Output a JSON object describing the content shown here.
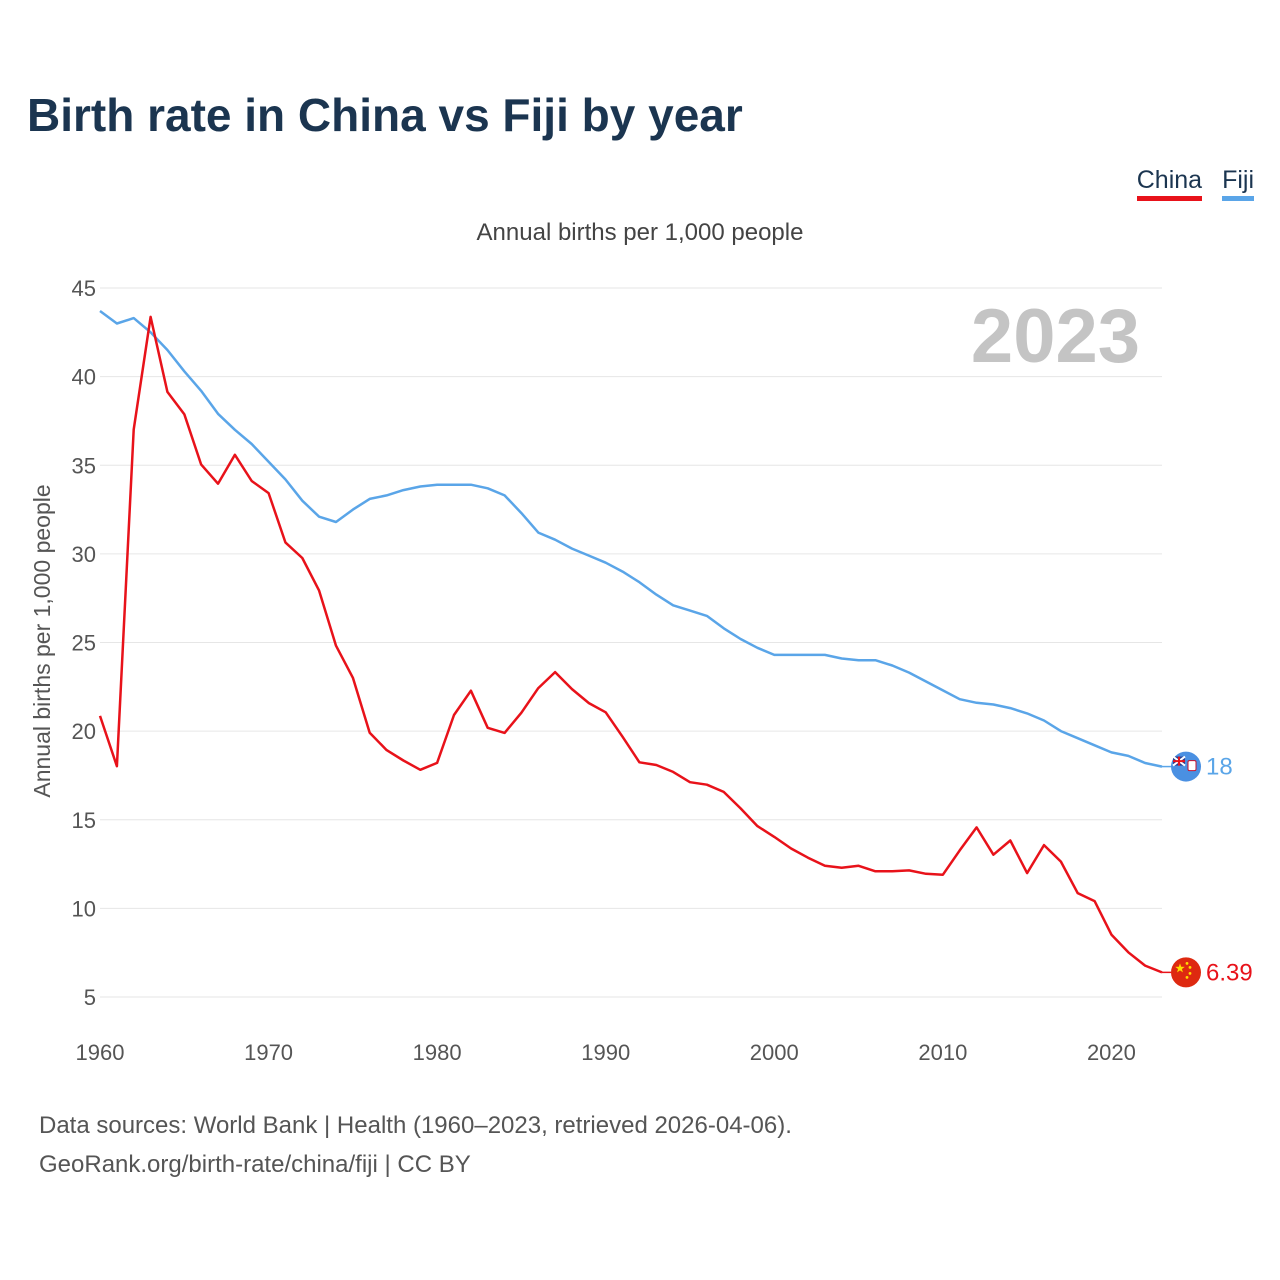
{
  "title": "Birth rate in China vs Fiji by year",
  "legend": [
    {
      "name": "China",
      "color": "#e8121a"
    },
    {
      "name": "Fiji",
      "color": "#5aa5e8"
    }
  ],
  "year_watermark": "2023",
  "sources_line": "Data sources: World Bank | Health (1960–2023, retrieved 2026-04-06).",
  "credit_line": "GeoRank.org/birth-rate/china/fiji | CC BY",
  "chart_data": {
    "type": "line",
    "title": "Annual births per 1,000 people",
    "ylabel": "Annual births per 1,000 people",
    "xlabel": "",
    "xlim": [
      1960,
      2023
    ],
    "ylim": [
      5,
      45
    ],
    "x_ticks": [
      1960,
      1970,
      1980,
      1990,
      2000,
      2010,
      2020
    ],
    "y_ticks": [
      5,
      10,
      15,
      20,
      25,
      30,
      35,
      40,
      45
    ],
    "grid": true,
    "x": [
      1960,
      1961,
      1962,
      1963,
      1964,
      1965,
      1966,
      1967,
      1968,
      1969,
      1970,
      1971,
      1972,
      1973,
      1974,
      1975,
      1976,
      1977,
      1978,
      1979,
      1980,
      1981,
      1982,
      1983,
      1984,
      1985,
      1986,
      1987,
      1988,
      1989,
      1990,
      1991,
      1992,
      1993,
      1994,
      1995,
      1996,
      1997,
      1998,
      1999,
      2000,
      2001,
      2002,
      2003,
      2004,
      2005,
      2006,
      2007,
      2008,
      2009,
      2010,
      2011,
      2012,
      2013,
      2014,
      2015,
      2016,
      2017,
      2018,
      2019,
      2020,
      2021,
      2022,
      2023
    ],
    "series": [
      {
        "name": "China",
        "color": "#e8121a",
        "end_label": "6.39",
        "flag": "china-flag-icon",
        "values": [
          20.86,
          18.02,
          37.01,
          43.37,
          39.14,
          37.88,
          35.05,
          33.96,
          35.59,
          34.11,
          33.43,
          30.65,
          29.77,
          27.93,
          24.82,
          23.01,
          19.91,
          18.93,
          18.34,
          17.82,
          18.21,
          20.91,
          22.28,
          20.19,
          19.9,
          21.04,
          22.43,
          23.33,
          22.37,
          21.58,
          21.06,
          19.68,
          18.24,
          18.09,
          17.7,
          17.12,
          16.98,
          16.57,
          15.64,
          14.64,
          14.03,
          13.38,
          12.86,
          12.41,
          12.29,
          12.4,
          12.09,
          12.1,
          12.14,
          11.95,
          11.9,
          13.27,
          14.57,
          13.03,
          13.83,
          11.99,
          13.57,
          12.64,
          10.86,
          10.41,
          8.52,
          7.52,
          6.77,
          6.39
        ]
      },
      {
        "name": "Fiji",
        "color": "#5aa5e8",
        "end_label": "18",
        "flag": "fiji-flag-icon",
        "values": [
          43.7,
          43.0,
          43.3,
          42.5,
          41.5,
          40.3,
          39.2,
          37.9,
          37.0,
          36.2,
          35.2,
          34.2,
          33.0,
          32.1,
          31.8,
          32.5,
          33.1,
          33.3,
          33.6,
          33.8,
          33.9,
          33.9,
          33.9,
          33.7,
          33.3,
          32.3,
          31.2,
          30.8,
          30.3,
          29.9,
          29.5,
          29.0,
          28.4,
          27.7,
          27.1,
          26.8,
          26.5,
          25.8,
          25.2,
          24.7,
          24.3,
          24.3,
          24.3,
          24.3,
          24.1,
          24.0,
          24.0,
          23.7,
          23.3,
          22.8,
          22.3,
          21.8,
          21.6,
          21.5,
          21.3,
          21.0,
          20.6,
          20.0,
          19.6,
          19.2,
          18.8,
          18.6,
          18.2,
          18.0
        ]
      }
    ]
  }
}
